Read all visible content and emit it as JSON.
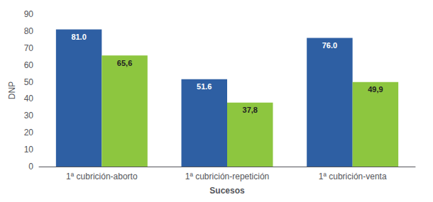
{
  "chart_data": {
    "type": "bar",
    "xlabel": "Sucesos",
    "ylabel": "DNP",
    "categories": [
      "1ª cubrición-aborto",
      "1ª cubrición-repetición",
      "1ª cubrición-venta"
    ],
    "series": [
      {
        "color": "#2E5FA3",
        "values": [
          81.0,
          51.6,
          76.0
        ],
        "value_labels": [
          "81.0",
          "51.6",
          "76.0"
        ]
      },
      {
        "color": "#8DC63F",
        "values": [
          65.6,
          37.8,
          49.9
        ],
        "value_labels": [
          "65,6",
          "37,8",
          "49,9"
        ]
      }
    ],
    "ylim": [
      0,
      90
    ],
    "yticks": [
      0,
      10,
      20,
      30,
      40,
      50,
      60,
      70,
      80,
      90
    ],
    "grid": false,
    "data_labels": true
  }
}
